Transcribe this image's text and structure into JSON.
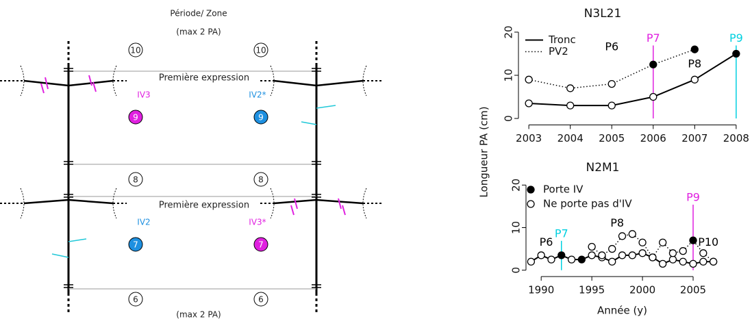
{
  "diagram": {
    "title": "Période/ Zone",
    "subtitle": "(max 2 PA)",
    "footer": "(max 2 PA)",
    "period_labels": [
      10,
      10,
      8,
      8,
      6,
      6
    ],
    "zones": [
      "Première expression",
      "Première expression"
    ],
    "units": [
      {
        "label": "IV3",
        "number": 9,
        "color": "#e020e0"
      },
      {
        "label": "IV2*",
        "number": 9,
        "color": "#1e90e0"
      },
      {
        "label": "IV2",
        "number": 7,
        "color": "#1e90e0"
      },
      {
        "label": "IV3*",
        "number": 7,
        "color": "#e020e0"
      }
    ]
  },
  "chart_data": [
    {
      "type": "line",
      "title": "N3L21",
      "ylabel": "Longueur PA (cm)",
      "x": [
        2003,
        2004,
        2005,
        2006,
        2007,
        2008
      ],
      "xlim": [
        2002.75,
        2008.25
      ],
      "xticks": [
        2003,
        2004,
        2005,
        2006,
        2007,
        2008
      ],
      "ylim": [
        -1.5,
        21.5
      ],
      "yticks": [
        0,
        10,
        20
      ],
      "series": [
        {
          "name": "Tronc",
          "style": "solid",
          "color": "#000000",
          "values": [
            3.5,
            3,
            3,
            5,
            9,
            15
          ],
          "filled": [
            false,
            false,
            false,
            false,
            false,
            true
          ]
        },
        {
          "name": "PV2",
          "style": "dotted",
          "color": "#000000",
          "values": [
            9,
            7,
            8,
            12.5,
            16,
            null
          ],
          "filled": [
            false,
            false,
            false,
            true,
            true,
            false
          ]
        }
      ],
      "annotations": [
        {
          "text": "P6",
          "x": 2005,
          "y": 16.5,
          "color": "#000000",
          "line": false
        },
        {
          "text": "P7",
          "x": 2006,
          "y": 18.5,
          "color": "#e020e0",
          "line": true
        },
        {
          "text": "P8",
          "x": 2007,
          "y": 12.5,
          "color": "#000000",
          "line": false
        },
        {
          "text": "P9",
          "x": 2008,
          "y": 18.5,
          "color": "#00d0e0",
          "line": true
        }
      ]
    },
    {
      "type": "line",
      "title": "N2M1",
      "xlabel": "Année (y)",
      "x": [
        1989,
        1990,
        1991,
        1992,
        1993,
        1994,
        1995,
        1996,
        1997,
        1998,
        1999,
        2000,
        2001,
        2002,
        2003,
        2004,
        2005,
        2006,
        2007
      ],
      "xlim": [
        1988.5,
        2007.5
      ],
      "xticks": [
        1990,
        1995,
        2000,
        2005
      ],
      "ylim": [
        -1.5,
        21.5
      ],
      "yticks": [
        0,
        10,
        20
      ],
      "legend": [
        {
          "label": "Porte IV",
          "filled": true
        },
        {
          "label": "Ne porte pas d'IV",
          "filled": false
        }
      ],
      "series": [
        {
          "style": "solid",
          "color": "#000000",
          "values": [
            2,
            3.5,
            2.5,
            3.5,
            2.5,
            2.5,
            3.5,
            3,
            2,
            3.5,
            3.5,
            4,
            3,
            1.5,
            2.5,
            2,
            1.5,
            2,
            2
          ],
          "filled": [
            false,
            false,
            false,
            true,
            false,
            true,
            false,
            false,
            false,
            false,
            false,
            false,
            false,
            false,
            false,
            false,
            false,
            false,
            false
          ]
        },
        {
          "style": "dotted",
          "color": "#000000",
          "values": [
            null,
            null,
            null,
            null,
            null,
            null,
            5.5,
            3.5,
            5,
            8,
            8.5,
            6.5,
            3,
            6.5,
            4,
            4.5,
            7,
            4,
            2
          ],
          "filled": [
            false,
            false,
            false,
            false,
            false,
            false,
            false,
            false,
            false,
            false,
            false,
            false,
            false,
            false,
            false,
            false,
            true,
            false,
            false
          ]
        }
      ],
      "annotations": [
        {
          "text": "P6",
          "x": 1990.5,
          "y": 6.5,
          "color": "#000000",
          "line": false
        },
        {
          "text": "P7",
          "x": 1992,
          "y": 8.5,
          "color": "#00d0e0",
          "line": true
        },
        {
          "text": "P8",
          "x": 1997.5,
          "y": 11,
          "color": "#000000",
          "line": false
        },
        {
          "text": "P9",
          "x": 2005,
          "y": 17,
          "color": "#e020e0",
          "line": true
        },
        {
          "text": "P10",
          "x": 2006.5,
          "y": 6.5,
          "color": "#000000",
          "line": false
        }
      ]
    }
  ]
}
